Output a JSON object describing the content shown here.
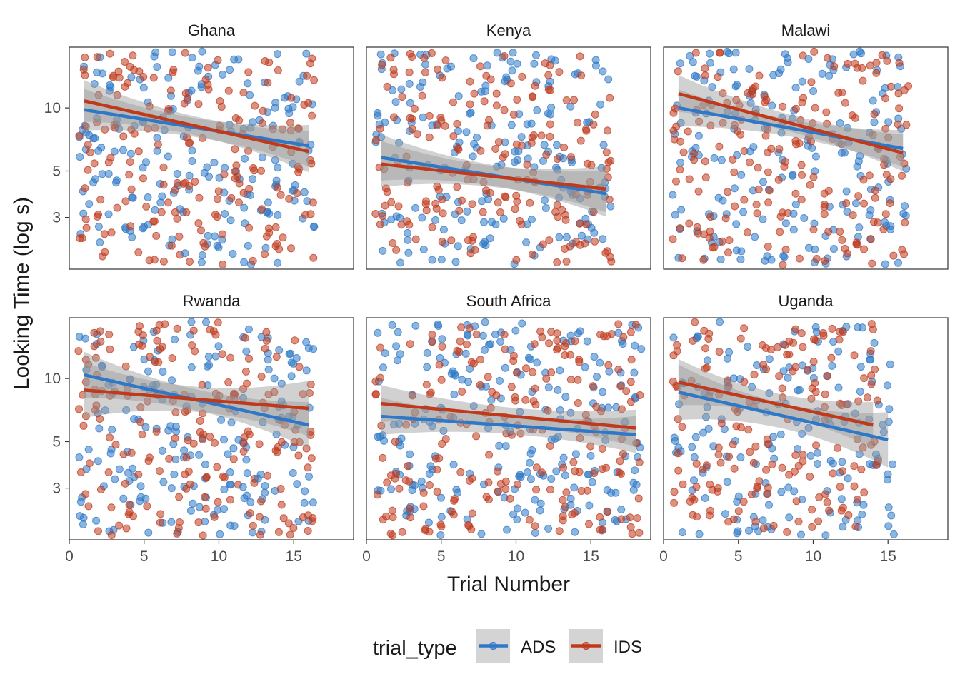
{
  "chart_data": {
    "type": "scatter",
    "title": "",
    "xlabel": "Trial Number",
    "ylabel": "Looking Time (log s)",
    "scale": {
      "y": "log",
      "x": "linear"
    },
    "xlim": [
      0,
      19
    ],
    "ylim": [
      1.7,
      19.5
    ],
    "x_ticks": [
      0,
      5,
      10,
      15
    ],
    "x_tick_labels": [
      "0",
      "5",
      "10",
      "15"
    ],
    "y_ticks": [
      3,
      5,
      10
    ],
    "y_tick_labels": [
      "3",
      "5",
      "10"
    ],
    "grid": false,
    "legend": {
      "title": "trial_type",
      "position": "bottom",
      "entries": [
        {
          "name": "ADS",
          "color": "#2E78C7"
        },
        {
          "name": "IDS",
          "color": "#C0391B"
        }
      ]
    },
    "colors": {
      "ADS": "#2E78C7",
      "IDS": "#C0391B",
      "ribbon": "#999999"
    },
    "panels": [
      {
        "label": "Ghana",
        "trials": 16,
        "fits": [
          {
            "series": "ADS",
            "x": [
              1,
              16
            ],
            "y": [
              9.8,
              6.6
            ],
            "ci_halfwidth_log10": 0.045
          },
          {
            "series": "IDS",
            "x": [
              1,
              16
            ],
            "y": [
              10.8,
              6.2
            ],
            "ci_halfwidth_log10": 0.045
          }
        ]
      },
      {
        "label": "Kenya",
        "trials": 16,
        "fits": [
          {
            "series": "ADS",
            "x": [
              1,
              16
            ],
            "y": [
              5.8,
              3.9
            ],
            "ci_halfwidth_log10": 0.05
          },
          {
            "series": "IDS",
            "x": [
              1,
              16
            ],
            "y": [
              5.4,
              4.1
            ],
            "ci_halfwidth_log10": 0.05
          }
        ]
      },
      {
        "label": "Malawi",
        "trials": 16,
        "fits": [
          {
            "series": "ADS",
            "x": [
              1,
              16
            ],
            "y": [
              10.0,
              6.4
            ],
            "ci_halfwidth_log10": 0.04
          },
          {
            "series": "IDS",
            "x": [
              1,
              16
            ],
            "y": [
              11.7,
              6.1
            ],
            "ci_halfwidth_log10": 0.04
          }
        ]
      },
      {
        "label": "Rwanda",
        "trials": 16,
        "fits": [
          {
            "series": "ADS",
            "x": [
              1,
              16
            ],
            "y": [
              10.4,
              6.0
            ],
            "ci_halfwidth_log10": 0.05
          },
          {
            "series": "IDS",
            "x": [
              1,
              16
            ],
            "y": [
              8.8,
              7.2
            ],
            "ci_halfwidth_log10": 0.06
          }
        ]
      },
      {
        "label": "South Africa",
        "trials": 18,
        "fits": [
          {
            "series": "ADS",
            "x": [
              1,
              18
            ],
            "y": [
              6.6,
              5.4
            ],
            "ci_halfwidth_log10": 0.04
          },
          {
            "series": "IDS",
            "x": [
              1,
              18
            ],
            "y": [
              7.6,
              5.8
            ],
            "ci_halfwidth_log10": 0.04
          }
        ]
      },
      {
        "label": "Uganda",
        "trials": 15,
        "fits": [
          {
            "series": "ADS",
            "x": [
              1,
              15
            ],
            "y": [
              8.6,
              5.1
            ],
            "ci_halfwidth_log10": 0.06
          },
          {
            "series": "IDS",
            "x": [
              1,
              14
            ],
            "y": [
              9.6,
              6.0
            ],
            "ci_halfwidth_log10": 0.05
          }
        ]
      }
    ]
  }
}
